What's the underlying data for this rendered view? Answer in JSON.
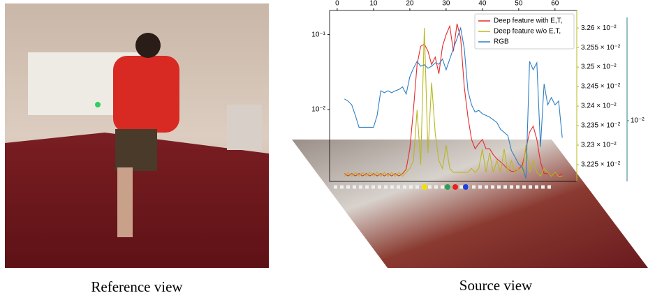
{
  "captions": [
    "Reference view",
    "Source view"
  ],
  "chart_data": {
    "type": "line",
    "x": [
      2,
      3,
      4,
      5,
      6,
      7,
      8,
      9,
      10,
      11,
      12,
      13,
      14,
      15,
      16,
      17,
      18,
      19,
      20,
      21,
      22,
      23,
      24,
      25,
      26,
      27,
      28,
      29,
      30,
      31,
      32,
      33,
      34,
      35,
      36,
      37,
      38,
      39,
      40,
      41,
      42,
      43,
      44,
      45,
      46,
      47,
      48,
      49,
      50,
      51,
      52,
      53,
      54,
      55,
      56,
      57,
      58,
      59,
      60,
      61,
      62
    ],
    "xlim": [
      -2.1,
      66
    ],
    "xticks": [
      0,
      10,
      20,
      30,
      40,
      50,
      60
    ],
    "ylim": [
      0.0011,
      0.21
    ],
    "ylog": true,
    "yticks": [
      {
        "value": 0.01,
        "label": "10⁻²"
      },
      {
        "value": 0.1,
        "label": "10⁻¹"
      }
    ],
    "y2lim": [
      0.032207,
      0.032645
    ],
    "y2ticks": [
      {
        "value": 0.03225,
        "label": "3.225 × 10⁻²"
      },
      {
        "value": 0.0323,
        "label": "3.23 × 10⁻²"
      },
      {
        "value": 0.03235,
        "label": "3.235 × 10⁻²"
      },
      {
        "value": 0.0324,
        "label": "3.24 × 10⁻²"
      },
      {
        "value": 0.03245,
        "label": "3.245 × 10⁻²"
      },
      {
        "value": 0.0325,
        "label": "3.25 × 10⁻²"
      },
      {
        "value": 0.03255,
        "label": "3.255 × 10⁻²"
      },
      {
        "value": 0.0326,
        "label": "3.26 × 10⁻²"
      }
    ],
    "y3lim": [
      0.00513,
      0.0336
    ],
    "y3log": true,
    "y3ticks": [
      {
        "value": 0.01,
        "label": "10⁻²"
      }
    ],
    "legend": "upper right",
    "series": [
      {
        "name": "Deep feature with E,T,",
        "color": "#e8282a",
        "axis": "y",
        "values": [
          0.0014,
          0.0013,
          0.0014,
          0.0013,
          0.0014,
          0.0013,
          0.0014,
          0.0013,
          0.0014,
          0.0013,
          0.0014,
          0.0013,
          0.0014,
          0.0013,
          0.0014,
          0.0013,
          0.0014,
          0.0016,
          0.003,
          0.01,
          0.04,
          0.07,
          0.075,
          0.06,
          0.04,
          0.05,
          0.03,
          0.07,
          0.1,
          0.13,
          0.06,
          0.14,
          0.09,
          0.02,
          0.008,
          0.004,
          0.003,
          0.0035,
          0.004,
          0.003,
          0.003,
          0.0025,
          0.0022,
          0.002,
          0.0018,
          0.0016,
          0.0015,
          0.0015,
          0.0016,
          0.0018,
          0.003,
          0.005,
          0.006,
          0.004,
          0.002,
          0.0014,
          0.0014,
          0.0013,
          0.0014,
          0.0013,
          0.0014
        ]
      },
      {
        "name": "Deep feature w/o E,T,",
        "color": "#b8b820",
        "axis": "y2",
        "values": [
          0.03222,
          0.03223,
          0.03222,
          0.03223,
          0.03222,
          0.03223,
          0.03222,
          0.03223,
          0.03222,
          0.03223,
          0.03222,
          0.03223,
          0.03222,
          0.03223,
          0.03222,
          0.03223,
          0.03222,
          0.03223,
          0.03224,
          0.03226,
          0.03239,
          0.03225,
          0.0326,
          0.03228,
          0.03246,
          0.03233,
          0.03226,
          0.03224,
          0.0323,
          0.03224,
          0.03223,
          0.03223,
          0.03223,
          0.03223,
          0.03223,
          0.03224,
          0.03223,
          0.03224,
          0.03229,
          0.03223,
          0.03228,
          0.03223,
          0.03226,
          0.03223,
          0.03229,
          0.03223,
          0.03226,
          0.03223,
          0.03224,
          0.03223,
          0.0323,
          0.03223,
          0.03226,
          0.03223,
          0.03222,
          0.03224,
          0.03223,
          0.03222,
          0.03223,
          0.03222,
          0.03222
        ]
      },
      {
        "name": "RGB",
        "color": "#2f7fc4",
        "axis": "y3",
        "values": [
          0.0127,
          0.0124,
          0.0119,
          0.0106,
          0.0093,
          0.0093,
          0.0093,
          0.0093,
          0.0093,
          0.0106,
          0.0139,
          0.0136,
          0.0139,
          0.0136,
          0.0139,
          0.0141,
          0.0145,
          0.0134,
          0.0162,
          0.0178,
          0.0192,
          0.0182,
          0.0185,
          0.0178,
          0.0182,
          0.0189,
          0.0186,
          0.0197,
          0.0175,
          0.0197,
          0.0221,
          0.0247,
          0.0277,
          0.0221,
          0.0139,
          0.0119,
          0.011,
          0.0112,
          0.0108,
          0.0106,
          0.0104,
          0.0101,
          0.0098,
          0.0091,
          0.0088,
          0.0085,
          0.0072,
          0.0067,
          0.0062,
          0.006,
          0.0053,
          0.0192,
          0.0175,
          0.0189,
          0.0075,
          0.015,
          0.0119,
          0.0129,
          0.0119,
          0.0124,
          0.0083
        ]
      }
    ]
  }
}
